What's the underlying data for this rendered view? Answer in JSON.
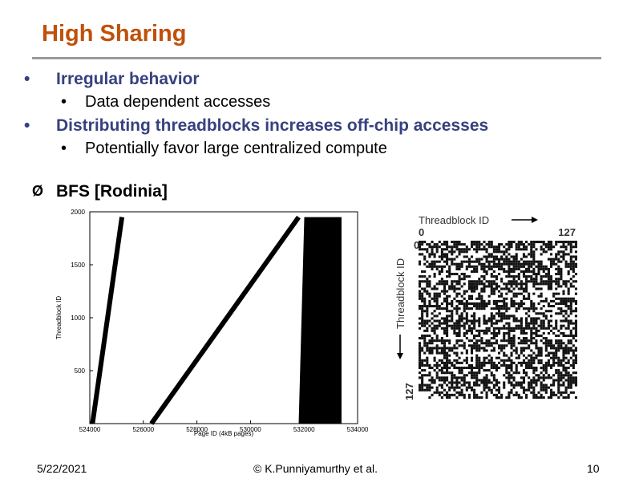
{
  "slide": {
    "title": "High Sharing",
    "bullets": [
      {
        "text": "Irregular behavior",
        "sub": "Data dependent accesses"
      },
      {
        "text": "Distributing threadblocks increases off-chip accesses",
        "sub": "Potentially favor large centralized compute"
      }
    ],
    "bullet_symbol": "•",
    "arrow_symbol": "Ø",
    "subheading": "BFS [Rodinia]",
    "footer": {
      "date": "5/22/2021",
      "author": "© K.Punniyamurthy et al.",
      "page": "10"
    },
    "title_color": "#c0500a",
    "bullet_color": "#37417f"
  },
  "chart_data": {
    "type": "scatter",
    "title": "",
    "xlabel": "Page ID (4kB pages)",
    "ylabel": "Threadblock ID",
    "xlim": [
      524000,
      534000
    ],
    "ylim": [
      0,
      2000
    ],
    "xticks": [
      "524000",
      "526000",
      "528000",
      "530000",
      "532000",
      "534000"
    ],
    "yticks": [
      "500",
      "1000",
      "1500",
      "2000"
    ],
    "series": [
      {
        "x": [
          524100,
          525200
        ],
        "y": [
          0,
          1950
        ]
      },
      {
        "x": [
          526300,
          531800
        ],
        "y": [
          0,
          1950
        ]
      },
      {
        "x": [
          531800,
          533400
        ],
        "y": [
          0,
          1950
        ],
        "dense": true
      }
    ]
  },
  "matrix": {
    "x_title": "Threadblock ID",
    "y_title": "Threadblock ID",
    "x_start": "0",
    "x_end": "127",
    "y_start": "0",
    "y_end": "127"
  }
}
